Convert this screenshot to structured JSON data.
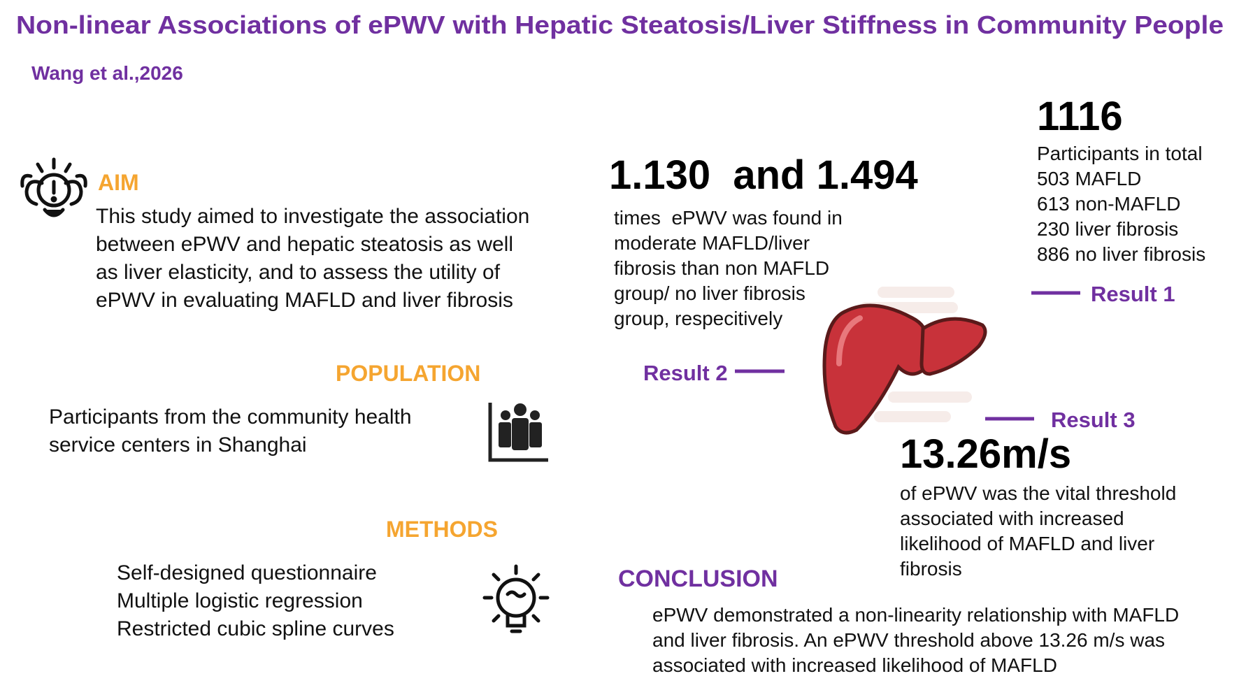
{
  "title": "Non-linear Associations of ePWV with Hepatic Steatosis/Liver Stiffness in Community People",
  "citation": "Wang et al.,2026",
  "aim": {
    "heading": "AIM",
    "lines": [
      "This study aimed to investigate the association",
      "between ePWV and hepatic steatosis as well",
      "as liver elasticity, and to assess the utility of",
      "ePWV in evaluating MAFLD and liver fibrosis"
    ]
  },
  "population": {
    "heading": "POPULATION",
    "lines": [
      "Participants from the community health",
      "service centers in Shanghai"
    ]
  },
  "methods": {
    "heading": "METHODS",
    "items": [
      "Self-designed questionnaire",
      "Multiple logistic regression",
      "Restricted cubic spline curves"
    ]
  },
  "result1": {
    "label": "Result 1",
    "number": "1116",
    "lines": [
      "Participants in total",
      "503 MAFLD",
      "613 non-MAFLD",
      "230 liver fibrosis",
      "886 no liver fibrosis"
    ]
  },
  "result2": {
    "label": "Result 2",
    "number": "1.130  and 1.494",
    "lines": [
      "times  ePWV was found in",
      "moderate MAFLD/liver",
      "fibrosis than non MAFLD",
      "group/ no liver fibrosis",
      "group, respecitively"
    ]
  },
  "result3": {
    "label": "Result 3",
    "number": "13.26m/s",
    "lines": [
      "of ePWV was the vital threshold",
      "associated with increased",
      "likelihood of MAFLD and liver",
      "fibrosis"
    ]
  },
  "conclusion": {
    "heading": "CONCLUSION",
    "lines": [
      "ePWV demonstrated a non-linearity relationship with MAFLD",
      "and liver fibrosis. An ePWV threshold above 13.26 m/s was",
      "associated with increased likelihood of MAFLD"
    ]
  }
}
